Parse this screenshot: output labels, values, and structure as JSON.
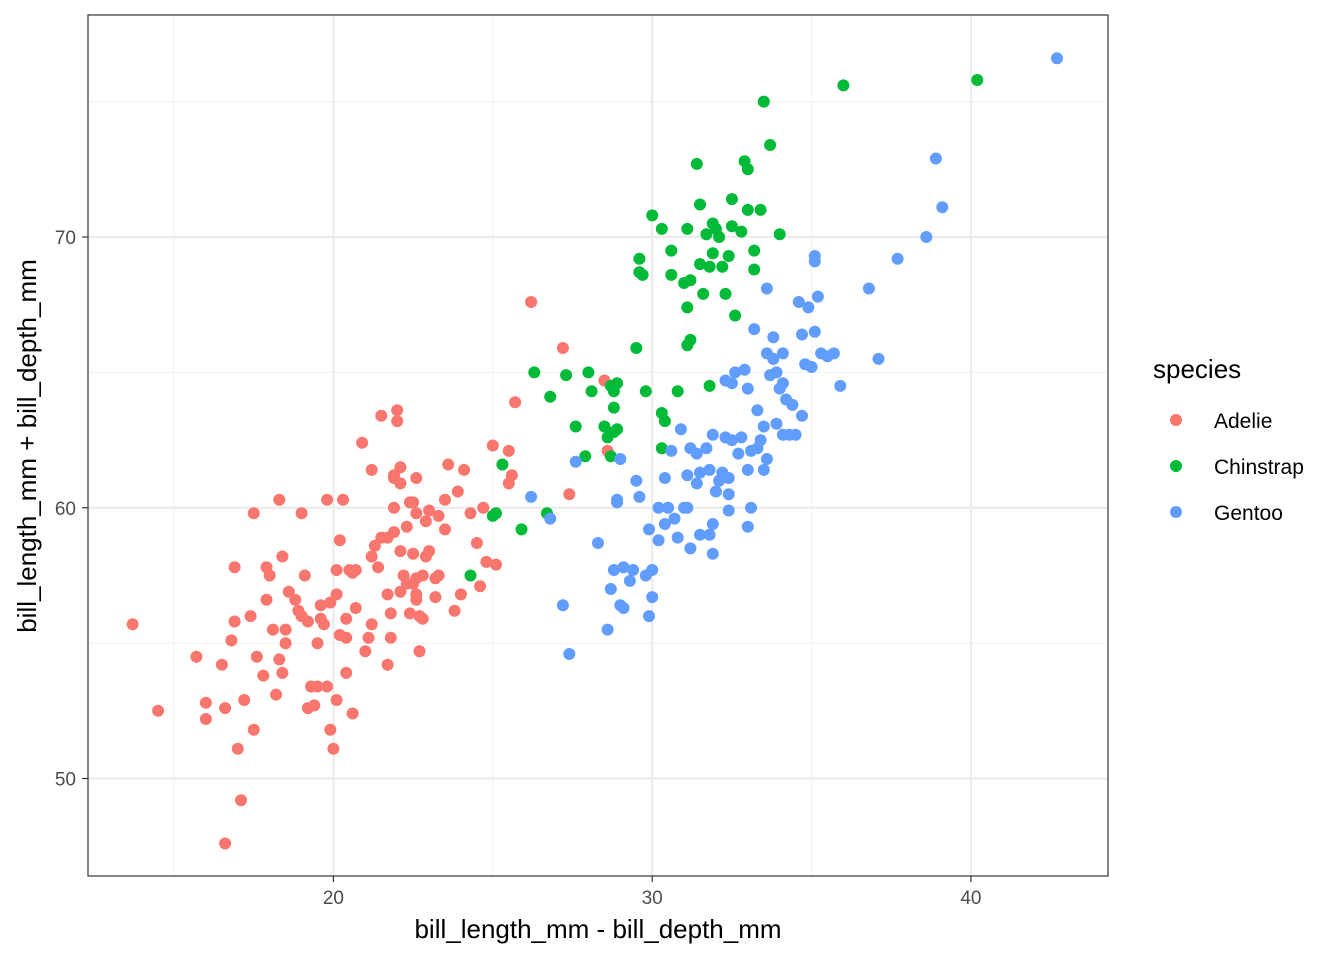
{
  "chart_data": {
    "type": "scatter",
    "title": "",
    "xlabel": "bill_length_mm - bill_depth_mm",
    "ylabel": "bill_length_mm + bill_depth_mm",
    "xlim": [
      12.3,
      44.3
    ],
    "ylim": [
      46.4,
      78.2
    ],
    "x_ticks": [
      20,
      30,
      40
    ],
    "y_ticks": [
      50,
      60,
      70
    ],
    "x_tick_labels": [
      "20",
      "30",
      "40"
    ],
    "y_tick_labels": [
      "50",
      "60",
      "70"
    ],
    "grid": true,
    "legend": {
      "title": "species",
      "placement": "right"
    },
    "series": [
      {
        "name": "Adelie",
        "color": "#F8766D",
        "points": [
          [
            13.7,
            55.7
          ],
          [
            14.5,
            52.5
          ],
          [
            15.7,
            54.5
          ],
          [
            16.0,
            52.8
          ],
          [
            16.0,
            52.2
          ],
          [
            16.5,
            54.2
          ],
          [
            16.6,
            52.6
          ],
          [
            16.8,
            55.1
          ],
          [
            16.9,
            55.8
          ],
          [
            16.9,
            57.8
          ],
          [
            17.0,
            51.1
          ],
          [
            17.1,
            49.2
          ],
          [
            16.6,
            47.6
          ],
          [
            17.2,
            52.9
          ],
          [
            17.5,
            51.8
          ],
          [
            17.4,
            56.0
          ],
          [
            17.5,
            59.8
          ],
          [
            17.6,
            54.5
          ],
          [
            17.8,
            53.8
          ],
          [
            17.9,
            56.6
          ],
          [
            17.9,
            57.8
          ],
          [
            18.0,
            57.5
          ],
          [
            18.1,
            55.5
          ],
          [
            18.3,
            60.3
          ],
          [
            18.2,
            53.1
          ],
          [
            18.3,
            54.4
          ],
          [
            18.4,
            53.9
          ],
          [
            18.5,
            55.0
          ],
          [
            18.5,
            55.5
          ],
          [
            18.4,
            58.2
          ],
          [
            18.6,
            56.9
          ],
          [
            18.8,
            56.6
          ],
          [
            18.9,
            56.2
          ],
          [
            19.0,
            59.8
          ],
          [
            19.2,
            52.6
          ],
          [
            19.3,
            53.4
          ],
          [
            19.2,
            55.8
          ],
          [
            19.1,
            57.5
          ],
          [
            19.0,
            56.0
          ],
          [
            19.4,
            52.7
          ],
          [
            19.5,
            53.4
          ],
          [
            19.5,
            55.0
          ],
          [
            19.6,
            56.4
          ],
          [
            19.6,
            55.9
          ],
          [
            19.8,
            60.3
          ],
          [
            19.7,
            55.7
          ],
          [
            19.8,
            53.4
          ],
          [
            19.9,
            56.5
          ],
          [
            19.9,
            51.8
          ],
          [
            20.0,
            51.1
          ],
          [
            20.1,
            52.9
          ],
          [
            20.1,
            56.8
          ],
          [
            20.1,
            57.7
          ],
          [
            20.2,
            55.3
          ],
          [
            20.2,
            58.8
          ],
          [
            20.3,
            60.3
          ],
          [
            20.4,
            53.9
          ],
          [
            20.4,
            55.9
          ],
          [
            20.5,
            57.7
          ],
          [
            20.6,
            57.6
          ],
          [
            20.6,
            52.4
          ],
          [
            20.7,
            57.7
          ],
          [
            20.7,
            56.3
          ],
          [
            20.9,
            62.4
          ],
          [
            21.0,
            54.7
          ],
          [
            21.1,
            55.2
          ],
          [
            21.2,
            55.7
          ],
          [
            21.2,
            58.2
          ],
          [
            21.3,
            58.6
          ],
          [
            21.4,
            57.8
          ],
          [
            21.5,
            58.9
          ],
          [
            21.7,
            56.8
          ],
          [
            21.7,
            54.2
          ],
          [
            21.8,
            55.2
          ],
          [
            21.9,
            59.1
          ],
          [
            21.9,
            61.2
          ],
          [
            22.0,
            63.6
          ],
          [
            22.1,
            58.4
          ],
          [
            22.1,
            60.9
          ],
          [
            22.1,
            61.5
          ],
          [
            22.2,
            57.5
          ],
          [
            22.3,
            57.2
          ],
          [
            22.4,
            56.1
          ],
          [
            22.4,
            60.2
          ],
          [
            22.5,
            57.2
          ],
          [
            22.6,
            56.6
          ],
          [
            22.6,
            56.8
          ],
          [
            22.5,
            58.3
          ],
          [
            22.7,
            54.7
          ],
          [
            22.7,
            56.0
          ],
          [
            22.8,
            57.5
          ],
          [
            22.8,
            55.9
          ],
          [
            22.9,
            59.5
          ],
          [
            23.0,
            58.4
          ],
          [
            23.0,
            59.9
          ],
          [
            23.2,
            57.4
          ],
          [
            23.2,
            56.7
          ],
          [
            23.3,
            59.7
          ],
          [
            23.5,
            59.2
          ],
          [
            23.5,
            60.3
          ],
          [
            23.6,
            61.6
          ],
          [
            23.8,
            56.2
          ],
          [
            23.9,
            60.6
          ],
          [
            24.0,
            56.8
          ],
          [
            24.1,
            61.4
          ],
          [
            24.3,
            59.8
          ],
          [
            24.5,
            58.7
          ],
          [
            24.6,
            57.1
          ],
          [
            24.7,
            60.0
          ],
          [
            24.8,
            58.0
          ],
          [
            25.0,
            62.3
          ],
          [
            25.1,
            57.9
          ],
          [
            25.5,
            60.9
          ],
          [
            25.6,
            61.2
          ],
          [
            25.7,
            63.9
          ],
          [
            25.5,
            62.1
          ],
          [
            26.2,
            67.6
          ],
          [
            27.2,
            65.9
          ],
          [
            27.4,
            60.5
          ],
          [
            28.6,
            62.1
          ],
          [
            28.5,
            64.7
          ],
          [
            21.5,
            63.4
          ],
          [
            22.0,
            63.2
          ],
          [
            21.9,
            61.1
          ],
          [
            22.6,
            61.1
          ],
          [
            22.1,
            56.9
          ],
          [
            22.3,
            59.3
          ],
          [
            22.9,
            58.2
          ],
          [
            22.6,
            59.8
          ],
          [
            22.6,
            57.4
          ],
          [
            21.2,
            61.4
          ],
          [
            21.7,
            58.9
          ],
          [
            20.4,
            55.2
          ],
          [
            21.8,
            56.1
          ],
          [
            21.9,
            60.0
          ],
          [
            22.5,
            60.2
          ],
          [
            23.3,
            57.5
          ]
        ]
      },
      {
        "name": "Chinstrap",
        "color": "#00BA38",
        "points": [
          [
            24.3,
            57.5
          ],
          [
            25.0,
            59.7
          ],
          [
            25.1,
            59.8
          ],
          [
            25.3,
            61.6
          ],
          [
            25.9,
            59.2
          ],
          [
            26.3,
            65.0
          ],
          [
            26.7,
            59.8
          ],
          [
            26.8,
            64.1
          ],
          [
            27.3,
            64.9
          ],
          [
            27.6,
            63.0
          ],
          [
            28.0,
            65.0
          ],
          [
            28.1,
            64.3
          ],
          [
            28.5,
            63.0
          ],
          [
            28.6,
            62.6
          ],
          [
            28.7,
            64.5
          ],
          [
            28.7,
            61.9
          ],
          [
            28.8,
            64.3
          ],
          [
            28.8,
            63.7
          ],
          [
            28.9,
            62.9
          ],
          [
            28.9,
            64.6
          ],
          [
            29.5,
            65.9
          ],
          [
            29.6,
            68.7
          ],
          [
            29.6,
            69.2
          ],
          [
            29.7,
            68.6
          ],
          [
            29.8,
            64.3
          ],
          [
            30.3,
            70.3
          ],
          [
            30.3,
            63.5
          ],
          [
            30.4,
            63.2
          ],
          [
            30.6,
            69.5
          ],
          [
            30.6,
            68.6
          ],
          [
            30.8,
            64.3
          ],
          [
            31.1,
            70.3
          ],
          [
            31.1,
            67.4
          ],
          [
            31.1,
            66.0
          ],
          [
            31.2,
            68.4
          ],
          [
            31.4,
            72.7
          ],
          [
            31.5,
            71.2
          ],
          [
            31.5,
            69.0
          ],
          [
            31.6,
            67.9
          ],
          [
            31.7,
            70.1
          ],
          [
            31.8,
            64.5
          ],
          [
            31.8,
            68.9
          ],
          [
            31.9,
            69.4
          ],
          [
            31.9,
            70.5
          ],
          [
            32.0,
            70.3
          ],
          [
            32.1,
            70.0
          ],
          [
            32.2,
            68.9
          ],
          [
            32.3,
            67.9
          ],
          [
            32.4,
            69.3
          ],
          [
            32.5,
            71.4
          ],
          [
            32.5,
            70.4
          ],
          [
            32.6,
            67.1
          ],
          [
            32.8,
            70.2
          ],
          [
            32.9,
            72.8
          ],
          [
            33.0,
            72.5
          ],
          [
            33.0,
            71.0
          ],
          [
            33.2,
            69.5
          ],
          [
            33.2,
            68.8
          ],
          [
            33.4,
            71.0
          ],
          [
            33.5,
            75.0
          ],
          [
            33.7,
            73.4
          ],
          [
            34.0,
            70.1
          ],
          [
            36.0,
            75.6
          ],
          [
            40.2,
            75.8
          ],
          [
            31.0,
            68.3
          ],
          [
            30.0,
            70.8
          ],
          [
            27.9,
            61.9
          ],
          [
            28.8,
            62.8
          ],
          [
            30.3,
            62.2
          ],
          [
            31.2,
            66.2
          ]
        ]
      },
      {
        "name": "Gentoo",
        "color": "#619CFF",
        "points": [
          [
            26.2,
            60.4
          ],
          [
            26.8,
            59.6
          ],
          [
            27.2,
            56.4
          ],
          [
            27.4,
            54.6
          ],
          [
            27.6,
            61.7
          ],
          [
            28.3,
            58.7
          ],
          [
            28.6,
            55.5
          ],
          [
            28.7,
            57.0
          ],
          [
            28.8,
            57.7
          ],
          [
            28.9,
            60.2
          ],
          [
            29.0,
            56.4
          ],
          [
            29.1,
            56.3
          ],
          [
            29.1,
            57.8
          ],
          [
            29.3,
            57.3
          ],
          [
            29.4,
            57.7
          ],
          [
            29.5,
            61.0
          ],
          [
            29.6,
            60.4
          ],
          [
            29.8,
            57.5
          ],
          [
            29.9,
            56.0
          ],
          [
            29.9,
            59.2
          ],
          [
            30.0,
            56.7
          ],
          [
            30.0,
            57.7
          ],
          [
            30.2,
            58.8
          ],
          [
            30.4,
            59.4
          ],
          [
            30.4,
            61.1
          ],
          [
            30.5,
            60.0
          ],
          [
            30.6,
            62.1
          ],
          [
            30.7,
            59.6
          ],
          [
            30.8,
            58.9
          ],
          [
            30.9,
            62.9
          ],
          [
            31.0,
            60.0
          ],
          [
            31.1,
            60.0
          ],
          [
            31.1,
            61.2
          ],
          [
            31.2,
            62.2
          ],
          [
            31.2,
            58.5
          ],
          [
            31.4,
            60.9
          ],
          [
            31.5,
            59.0
          ],
          [
            31.5,
            61.3
          ],
          [
            31.7,
            62.2
          ],
          [
            31.8,
            61.4
          ],
          [
            31.8,
            59.0
          ],
          [
            31.9,
            59.4
          ],
          [
            31.9,
            62.7
          ],
          [
            31.9,
            58.3
          ],
          [
            32.0,
            60.6
          ],
          [
            32.1,
            61.0
          ],
          [
            32.2,
            61.3
          ],
          [
            32.3,
            62.6
          ],
          [
            32.4,
            59.9
          ],
          [
            32.4,
            60.5
          ],
          [
            32.4,
            61.1
          ],
          [
            32.5,
            62.5
          ],
          [
            32.5,
            64.6
          ],
          [
            32.6,
            65.0
          ],
          [
            32.7,
            62.0
          ],
          [
            32.8,
            62.6
          ],
          [
            32.9,
            65.1
          ],
          [
            33.0,
            64.4
          ],
          [
            33.0,
            59.3
          ],
          [
            33.1,
            62.1
          ],
          [
            33.1,
            60.0
          ],
          [
            33.2,
            66.6
          ],
          [
            33.3,
            63.6
          ],
          [
            33.4,
            62.5
          ],
          [
            33.5,
            61.4
          ],
          [
            33.6,
            65.7
          ],
          [
            33.6,
            61.8
          ],
          [
            33.7,
            64.9
          ],
          [
            33.8,
            65.5
          ],
          [
            33.8,
            66.3
          ],
          [
            33.9,
            65.0
          ],
          [
            33.9,
            63.1
          ],
          [
            34.0,
            64.4
          ],
          [
            34.1,
            65.7
          ],
          [
            34.1,
            62.7
          ],
          [
            34.2,
            64.0
          ],
          [
            34.3,
            62.7
          ],
          [
            34.4,
            63.8
          ],
          [
            34.5,
            62.7
          ],
          [
            34.6,
            67.6
          ],
          [
            34.7,
            66.4
          ],
          [
            34.8,
            65.3
          ],
          [
            34.9,
            67.4
          ],
          [
            35.0,
            65.2
          ],
          [
            35.1,
            66.5
          ],
          [
            35.1,
            69.3
          ],
          [
            35.1,
            69.1
          ],
          [
            35.2,
            67.8
          ],
          [
            35.3,
            65.7
          ],
          [
            35.5,
            65.6
          ],
          [
            35.7,
            65.7
          ],
          [
            35.9,
            64.5
          ],
          [
            36.8,
            68.1
          ],
          [
            37.1,
            65.5
          ],
          [
            37.7,
            69.2
          ],
          [
            38.6,
            70.0
          ],
          [
            38.9,
            72.9
          ],
          [
            39.1,
            71.1
          ],
          [
            42.7,
            76.6
          ],
          [
            33.6,
            68.1
          ],
          [
            31.4,
            62.0
          ],
          [
            30.2,
            60.0
          ],
          [
            29.0,
            61.8
          ],
          [
            28.9,
            60.3
          ],
          [
            32.3,
            64.7
          ],
          [
            33.0,
            61.4
          ],
          [
            33.5,
            63.0
          ],
          [
            34.7,
            63.4
          ],
          [
            34.1,
            64.6
          ],
          [
            33.3,
            62.2
          ]
        ]
      }
    ]
  }
}
